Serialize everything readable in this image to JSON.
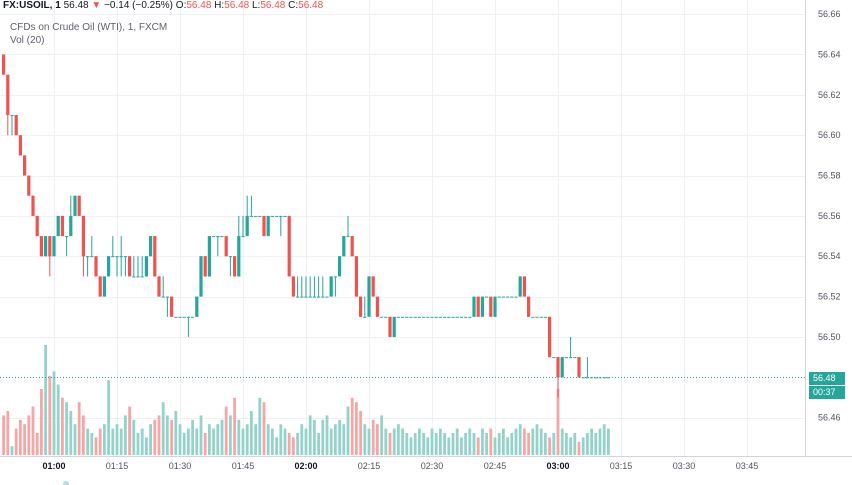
{
  "header": {
    "symbol": "FX:USOIL, 1",
    "last": "56.48",
    "arrow": "▼",
    "change": "−0.14 (−0.25%)",
    "o_label": "O:",
    "o_value": "56.48",
    "h_label": "H:",
    "h_value": "56.48",
    "l_label": "L:",
    "l_value": "56.48",
    "c_label": "C:",
    "c_value": "56.48"
  },
  "legend": {
    "series_title": "CFDs on Crude Oil (WTI), 1, FXCM",
    "volume_title": "Vol (20)"
  },
  "badges": {
    "price": "56.48",
    "countdown": "00:37"
  },
  "colors": {
    "up": "#26a69a",
    "down": "#ef5350",
    "vol_up": "#93d3cb",
    "vol_down": "#f5a6a5",
    "grid": "#eef0f3",
    "price_line": "#26a69a"
  },
  "chart_data": {
    "type": "candlestick",
    "price_axis": {
      "ticks": [
        "56.66",
        "56.64",
        "56.62",
        "56.60",
        "56.58",
        "56.56",
        "56.54",
        "56.52",
        "56.50",
        "56.46"
      ],
      "range": [
        56.441,
        56.667
      ]
    },
    "time_axis": {
      "ticks": [
        {
          "label": "01:00",
          "minute": 60,
          "bold": true
        },
        {
          "label": "01:15",
          "minute": 75,
          "bold": false
        },
        {
          "label": "01:30",
          "minute": 90,
          "bold": false
        },
        {
          "label": "01:45",
          "minute": 105,
          "bold": false
        },
        {
          "label": "02:00",
          "minute": 120,
          "bold": true
        },
        {
          "label": "02:15",
          "minute": 135,
          "bold": false
        },
        {
          "label": "02:30",
          "minute": 150,
          "bold": false
        },
        {
          "label": "02:45",
          "minute": 165,
          "bold": false
        },
        {
          "label": "03:00",
          "minute": 180,
          "bold": true
        },
        {
          "label": "03:15",
          "minute": 195,
          "bold": false
        },
        {
          "label": "03:30",
          "minute": 210,
          "bold": false
        },
        {
          "label": "03:45",
          "minute": 225,
          "bold": false
        }
      ]
    },
    "start_minute": 48,
    "candles": [
      [
        56.64,
        56.64,
        56.63,
        56.63
      ],
      [
        56.63,
        56.63,
        56.6,
        56.61
      ],
      [
        56.61,
        56.61,
        56.6,
        56.61
      ],
      [
        56.61,
        56.61,
        56.6,
        56.6
      ],
      [
        56.6,
        56.6,
        56.59,
        56.59
      ],
      [
        56.59,
        56.59,
        56.58,
        56.58
      ],
      [
        56.58,
        56.58,
        56.57,
        56.57
      ],
      [
        56.57,
        56.57,
        56.56,
        56.56
      ],
      [
        56.56,
        56.56,
        56.55,
        56.55
      ],
      [
        56.55,
        56.55,
        56.54,
        56.54
      ],
      [
        56.54,
        56.55,
        56.54,
        56.55
      ],
      [
        56.55,
        56.55,
        56.53,
        56.54
      ],
      [
        56.54,
        56.55,
        56.54,
        56.55
      ],
      [
        56.55,
        56.56,
        56.55,
        56.56
      ],
      [
        56.56,
        56.56,
        56.55,
        56.55
      ],
      [
        56.55,
        56.55,
        56.54,
        56.55
      ],
      [
        56.55,
        56.57,
        56.55,
        56.56
      ],
      [
        56.56,
        56.57,
        56.56,
        56.57
      ],
      [
        56.57,
        56.57,
        56.56,
        56.56
      ],
      [
        56.56,
        56.56,
        56.53,
        56.54
      ],
      [
        56.54,
        56.54,
        56.53,
        56.54
      ],
      [
        56.54,
        56.55,
        56.54,
        56.54
      ],
      [
        56.54,
        56.54,
        56.53,
        56.53
      ],
      [
        56.53,
        56.53,
        56.52,
        56.52
      ],
      [
        56.52,
        56.53,
        56.52,
        56.53
      ],
      [
        56.53,
        56.54,
        56.53,
        56.54
      ],
      [
        56.54,
        56.55,
        56.54,
        56.54
      ],
      [
        56.54,
        56.54,
        56.53,
        56.54
      ],
      [
        56.54,
        56.55,
        56.53,
        56.54
      ],
      [
        56.54,
        56.54,
        56.53,
        56.54
      ],
      [
        56.54,
        56.54,
        56.53,
        56.53
      ],
      [
        56.53,
        56.54,
        56.53,
        56.53
      ],
      [
        56.53,
        56.54,
        56.53,
        56.53
      ],
      [
        56.53,
        56.54,
        56.53,
        56.53
      ],
      [
        56.53,
        56.54,
        56.53,
        56.54
      ],
      [
        56.54,
        56.55,
        56.54,
        56.55
      ],
      [
        56.55,
        56.55,
        56.53,
        56.53
      ],
      [
        56.53,
        56.53,
        56.52,
        56.52
      ],
      [
        56.52,
        56.53,
        56.52,
        56.52
      ],
      [
        56.52,
        56.52,
        56.51,
        56.52
      ],
      [
        56.52,
        56.52,
        56.51,
        56.51
      ],
      [
        56.51,
        56.51,
        56.51,
        56.51
      ],
      [
        56.51,
        56.51,
        56.51,
        56.51
      ],
      [
        56.51,
        56.51,
        56.51,
        56.51
      ],
      [
        56.51,
        56.51,
        56.5,
        56.51
      ],
      [
        56.51,
        56.51,
        56.51,
        56.51
      ],
      [
        56.51,
        56.52,
        56.51,
        56.52
      ],
      [
        56.52,
        56.54,
        56.52,
        56.54
      ],
      [
        56.54,
        56.54,
        56.53,
        56.53
      ],
      [
        56.53,
        56.55,
        56.53,
        56.55
      ],
      [
        56.55,
        56.55,
        56.55,
        56.55
      ],
      [
        56.55,
        56.55,
        56.54,
        56.55
      ],
      [
        56.55,
        56.55,
        56.55,
        56.55
      ],
      [
        56.55,
        56.55,
        56.54,
        56.54
      ],
      [
        56.54,
        56.54,
        56.53,
        56.54
      ],
      [
        56.54,
        56.54,
        56.53,
        56.53
      ],
      [
        56.53,
        56.56,
        56.53,
        56.55
      ],
      [
        56.55,
        56.56,
        56.55,
        56.55
      ],
      [
        56.55,
        56.57,
        56.55,
        56.56
      ],
      [
        56.56,
        56.57,
        56.56,
        56.56
      ],
      [
        56.56,
        56.56,
        56.56,
        56.56
      ],
      [
        56.56,
        56.56,
        56.56,
        56.56
      ],
      [
        56.56,
        56.56,
        56.55,
        56.55
      ],
      [
        56.55,
        56.56,
        56.55,
        56.56
      ],
      [
        56.56,
        56.56,
        56.56,
        56.56
      ],
      [
        56.56,
        56.56,
        56.56,
        56.56
      ],
      [
        56.56,
        56.56,
        56.55,
        56.56
      ],
      [
        56.56,
        56.56,
        56.56,
        56.56
      ],
      [
        56.56,
        56.56,
        56.53,
        56.53
      ],
      [
        56.53,
        56.53,
        56.52,
        56.52
      ],
      [
        56.52,
        56.53,
        56.52,
        56.52
      ],
      [
        56.52,
        56.53,
        56.52,
        56.52
      ],
      [
        56.52,
        56.53,
        56.52,
        56.52
      ],
      [
        56.52,
        56.53,
        56.52,
        56.52
      ],
      [
        56.52,
        56.53,
        56.52,
        56.52
      ],
      [
        56.52,
        56.53,
        56.52,
        56.52
      ],
      [
        56.52,
        56.53,
        56.52,
        56.52
      ],
      [
        56.52,
        56.52,
        56.52,
        56.52
      ],
      [
        56.52,
        56.53,
        56.52,
        56.53
      ],
      [
        56.53,
        56.53,
        56.52,
        56.53
      ],
      [
        56.53,
        56.54,
        56.53,
        56.54
      ],
      [
        56.54,
        56.55,
        56.54,
        56.55
      ],
      [
        56.55,
        56.56,
        56.55,
        56.55
      ],
      [
        56.55,
        56.55,
        56.54,
        56.54
      ],
      [
        56.54,
        56.54,
        56.52,
        56.52
      ],
      [
        56.52,
        56.52,
        56.51,
        56.51
      ],
      [
        56.51,
        56.52,
        56.51,
        56.51
      ],
      [
        56.51,
        56.53,
        56.51,
        56.53
      ],
      [
        56.53,
        56.53,
        56.52,
        56.52
      ],
      [
        56.52,
        56.52,
        56.51,
        56.51
      ],
      [
        56.51,
        56.51,
        56.51,
        56.51
      ],
      [
        56.51,
        56.51,
        56.51,
        56.51
      ],
      [
        56.51,
        56.51,
        56.5,
        56.5
      ],
      [
        56.5,
        56.51,
        56.5,
        56.51
      ],
      [
        56.51,
        56.51,
        56.51,
        56.51
      ],
      [
        56.51,
        56.51,
        56.51,
        56.51
      ],
      [
        56.51,
        56.51,
        56.51,
        56.51
      ],
      [
        56.51,
        56.51,
        56.51,
        56.51
      ],
      [
        56.51,
        56.51,
        56.51,
        56.51
      ],
      [
        56.51,
        56.51,
        56.51,
        56.51
      ],
      [
        56.51,
        56.51,
        56.51,
        56.51
      ],
      [
        56.51,
        56.51,
        56.51,
        56.51
      ],
      [
        56.51,
        56.51,
        56.51,
        56.51
      ],
      [
        56.51,
        56.51,
        56.51,
        56.51
      ],
      [
        56.51,
        56.51,
        56.51,
        56.51
      ],
      [
        56.51,
        56.51,
        56.51,
        56.51
      ],
      [
        56.51,
        56.51,
        56.51,
        56.51
      ],
      [
        56.51,
        56.51,
        56.51,
        56.51
      ],
      [
        56.51,
        56.51,
        56.51,
        56.51
      ],
      [
        56.51,
        56.51,
        56.51,
        56.51
      ],
      [
        56.51,
        56.51,
        56.51,
        56.51
      ],
      [
        56.51,
        56.51,
        56.51,
        56.51
      ],
      [
        56.51,
        56.52,
        56.51,
        56.52
      ],
      [
        56.52,
        56.52,
        56.51,
        56.51
      ],
      [
        56.51,
        56.52,
        56.51,
        56.52
      ],
      [
        56.52,
        56.52,
        56.52,
        56.52
      ],
      [
        56.52,
        56.52,
        56.51,
        56.51
      ],
      [
        56.51,
        56.52,
        56.51,
        56.52
      ],
      [
        56.52,
        56.52,
        56.52,
        56.52
      ],
      [
        56.52,
        56.52,
        56.52,
        56.52
      ],
      [
        56.52,
        56.52,
        56.52,
        56.52
      ],
      [
        56.52,
        56.52,
        56.52,
        56.52
      ],
      [
        56.52,
        56.52,
        56.52,
        56.52
      ],
      [
        56.52,
        56.53,
        56.52,
        56.53
      ],
      [
        56.53,
        56.53,
        56.52,
        56.52
      ],
      [
        56.52,
        56.52,
        56.51,
        56.51
      ],
      [
        56.51,
        56.51,
        56.51,
        56.51
      ],
      [
        56.51,
        56.51,
        56.51,
        56.51
      ],
      [
        56.51,
        56.51,
        56.51,
        56.51
      ],
      [
        56.51,
        56.51,
        56.51,
        56.51
      ],
      [
        56.51,
        56.51,
        56.49,
        56.49
      ],
      [
        56.49,
        56.49,
        56.49,
        56.49
      ],
      [
        56.49,
        56.49,
        56.47,
        56.48
      ],
      [
        56.48,
        56.49,
        56.48,
        56.49
      ],
      [
        56.49,
        56.49,
        56.49,
        56.49
      ],
      [
        56.49,
        56.5,
        56.49,
        56.49
      ],
      [
        56.49,
        56.49,
        56.49,
        56.49
      ],
      [
        56.49,
        56.49,
        56.48,
        56.48
      ],
      [
        56.48,
        56.48,
        56.48,
        56.48
      ],
      [
        56.48,
        56.49,
        56.48,
        56.48
      ],
      [
        56.48,
        56.48,
        56.48,
        56.48
      ],
      [
        56.48,
        56.48,
        56.48,
        56.48
      ],
      [
        56.48,
        56.48,
        56.48,
        56.48
      ],
      [
        56.48,
        56.48,
        56.48,
        56.48
      ],
      [
        56.48,
        56.48,
        56.48,
        56.48
      ]
    ],
    "volume": [
      18,
      20,
      4,
      12,
      16,
      14,
      18,
      22,
      10,
      30,
      50,
      36,
      38,
      32,
      26,
      24,
      20,
      14,
      24,
      18,
      12,
      10,
      8,
      12,
      14,
      34,
      12,
      14,
      12,
      18,
      22,
      16,
      10,
      12,
      8,
      14,
      16,
      18,
      24,
      18,
      16,
      20,
      14,
      10,
      12,
      16,
      12,
      18,
      10,
      14,
      12,
      14,
      16,
      22,
      18,
      26,
      16,
      12,
      14,
      20,
      14,
      26,
      24,
      14,
      12,
      8,
      14,
      12,
      10,
      8,
      10,
      14,
      12,
      18,
      16,
      10,
      16,
      18,
      12,
      14,
      16,
      14,
      22,
      26,
      24,
      20,
      14,
      12,
      16,
      14,
      18,
      12,
      10,
      12,
      14,
      12,
      10,
      8,
      10,
      12,
      10,
      8,
      12,
      10,
      12,
      10,
      8,
      10,
      12,
      8,
      10,
      12,
      10,
      8,
      12,
      10,
      12,
      8,
      10,
      12,
      8,
      10,
      12,
      14,
      12,
      10,
      12,
      14,
      12,
      10,
      8,
      10,
      30,
      12,
      10,
      8,
      10,
      6,
      8,
      10,
      12,
      10,
      12,
      14,
      12,
      10,
      12
    ],
    "last_price": 56.48
  }
}
